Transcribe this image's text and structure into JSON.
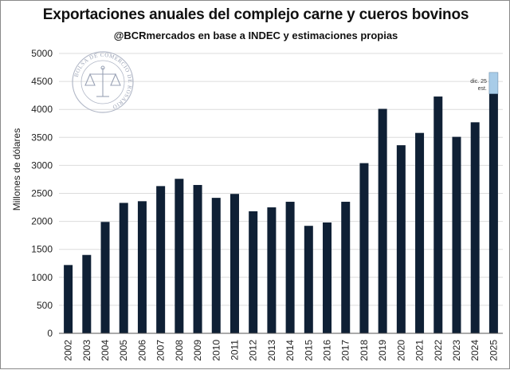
{
  "header": {
    "title": "Exportaciones anuales del complejo carne y cueros bovinos",
    "subtitle": "@BCRmercados en base a INDEC y estimaciones propias"
  },
  "watermark": {
    "text": "BOLSA DE COMERCIO DE ROSARIO",
    "color": "#8f98ad"
  },
  "chart_data": {
    "type": "bar",
    "title": "Exportaciones anuales del complejo carne y cueros bovinos",
    "subtitle": "@BCRmercados en base a INDEC y estimaciones propias",
    "xlabel": "",
    "ylabel": "Millones de dólares",
    "ylim": [
      0,
      5000
    ],
    "yticks": [
      0,
      500,
      1000,
      1500,
      2000,
      2500,
      3000,
      3500,
      4000,
      4500,
      5000
    ],
    "grid": true,
    "categories": [
      "2002",
      "2003",
      "2004",
      "2005",
      "2006",
      "2007",
      "2008",
      "2009",
      "2010",
      "2011",
      "2012",
      "2013",
      "2014",
      "2015",
      "2016",
      "2017",
      "2018",
      "2019",
      "2020",
      "2021",
      "2022",
      "2023",
      "2024",
      "2025"
    ],
    "series": [
      {
        "color": "#0f2035",
        "values": [
          1220,
          1400,
          1990,
          2330,
          2360,
          2630,
          2760,
          2650,
          2420,
          2490,
          2180,
          2250,
          2350,
          1920,
          1980,
          2350,
          3040,
          4010,
          3360,
          3580,
          4230,
          3510,
          3770,
          4280
        ]
      },
      {
        "color": "#a8cce8",
        "values": [
          0,
          0,
          0,
          0,
          0,
          0,
          0,
          0,
          0,
          0,
          0,
          0,
          0,
          0,
          0,
          0,
          0,
          0,
          0,
          0,
          0,
          0,
          0,
          380
        ]
      }
    ],
    "annotation": {
      "lines": [
        "dic. 25",
        "est."
      ],
      "category": "2025"
    }
  }
}
